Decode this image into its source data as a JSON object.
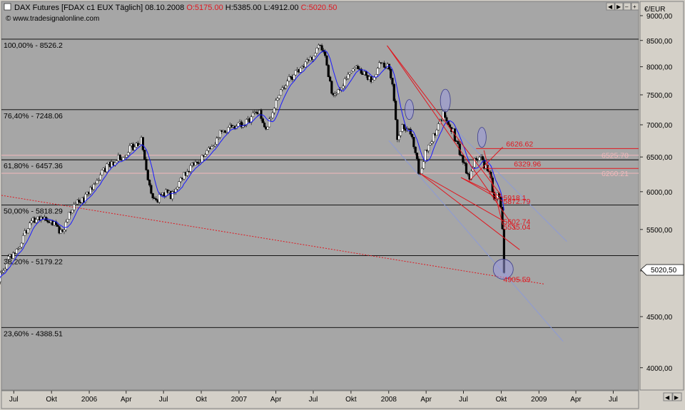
{
  "header": {
    "instrument": "DAX Futures [FDAX c1 EUX  Täglich] 08.10.2008",
    "open": "O:5175.00",
    "high": "H:5385.00",
    "low": "L:4912.00",
    "close": "C:5020.50",
    "source": "www.tradesignalonline.com",
    "currency": "€/EUR",
    "last_price": "5020,50"
  },
  "colors": {
    "plot_bg": "#a6a6a6",
    "panel_bg": "#d4d0c8",
    "up_candle": "#ffffff",
    "down_candle": "#000000",
    "moving_average": "#1a1aff",
    "trend_red": "#e0171f",
    "channel_blue": "#8c9ad6",
    "fib_line": "#000000",
    "pink_line": "#f2b8bb",
    "highlight_ellipse": "#9a9adf"
  },
  "chart_data": {
    "type": "candlestick",
    "title": "DAX Futures [FDAX c1 EUX  Täglich] 08.10.2008",
    "ylabel": "€/EUR",
    "y_scale": "log",
    "ylim": [
      3800,
      9300
    ],
    "xlim": [
      "2005-06-01",
      "2009-09-01"
    ],
    "grid": false,
    "y_ticks": [
      "4000,00",
      "4500,00",
      "5000,00",
      "5500,00",
      "6000,00",
      "6500,00",
      "7000,00",
      "7500,00",
      "8000,00",
      "8500,00",
      "9000,00"
    ],
    "y_tick_values": [
      4000,
      4500,
      5000,
      5500,
      6000,
      6500,
      7000,
      7500,
      8000,
      8500,
      9000
    ],
    "x_ticks": [
      {
        "label": "Jul",
        "date": "2005-07-01"
      },
      {
        "label": "Okt",
        "date": "2005-10-01"
      },
      {
        "label": "2006",
        "date": "2006-01-01"
      },
      {
        "label": "Apr",
        "date": "2006-04-01"
      },
      {
        "label": "Jul",
        "date": "2006-07-01"
      },
      {
        "label": "Okt",
        "date": "2006-10-01"
      },
      {
        "label": "2007",
        "date": "2007-01-01"
      },
      {
        "label": "Apr",
        "date": "2007-04-01"
      },
      {
        "label": "Jul",
        "date": "2007-07-01"
      },
      {
        "label": "Okt",
        "date": "2007-10-01"
      },
      {
        "label": "2008",
        "date": "2008-01-01"
      },
      {
        "label": "Apr",
        "date": "2008-04-01"
      },
      {
        "label": "Jul",
        "date": "2008-07-01"
      },
      {
        "label": "Okt",
        "date": "2008-10-01"
      },
      {
        "label": "2009",
        "date": "2009-01-01"
      },
      {
        "label": "Apr",
        "date": "2009-04-01"
      },
      {
        "label": "Jul",
        "date": "2009-07-01"
      }
    ],
    "price_path": [
      [
        "2005-05-25",
        4900
      ],
      [
        "2005-06-20",
        5150
      ],
      [
        "2005-07-15",
        5300
      ],
      [
        "2005-08-10",
        5600
      ],
      [
        "2005-09-05",
        5650
      ],
      [
        "2005-10-10",
        5550
      ],
      [
        "2005-10-28",
        5460
      ],
      [
        "2005-11-25",
        5850
      ],
      [
        "2005-12-20",
        5900
      ],
      [
        "2006-01-25",
        6200
      ],
      [
        "2006-02-20",
        6400
      ],
      [
        "2006-03-20",
        6500
      ],
      [
        "2006-04-15",
        6650
      ],
      [
        "2006-05-08",
        6750
      ],
      [
        "2006-05-25",
        6100
      ],
      [
        "2006-06-14",
        5850
      ],
      [
        "2006-06-30",
        6000
      ],
      [
        "2006-07-20",
        5950
      ],
      [
        "2006-08-20",
        6250
      ],
      [
        "2006-09-15",
        6400
      ],
      [
        "2006-10-15",
        6550
      ],
      [
        "2006-11-15",
        6850
      ],
      [
        "2006-12-15",
        6950
      ],
      [
        "2007-01-20",
        7050
      ],
      [
        "2007-02-20",
        7250
      ],
      [
        "2007-03-05",
        6900
      ],
      [
        "2007-03-25",
        7250
      ],
      [
        "2007-04-20",
        7650
      ],
      [
        "2007-05-20",
        7900
      ],
      [
        "2007-06-20",
        8100
      ],
      [
        "2007-07-15",
        8420
      ],
      [
        "2007-07-28",
        8300
      ],
      [
        "2007-08-16",
        7450
      ],
      [
        "2007-09-05",
        7650
      ],
      [
        "2007-10-01",
        7900
      ],
      [
        "2007-10-20",
        8000
      ],
      [
        "2007-11-10",
        7800
      ],
      [
        "2007-11-25",
        7700
      ],
      [
        "2007-12-10",
        8050
      ],
      [
        "2007-12-31",
        8000
      ],
      [
        "2008-01-10",
        7700
      ],
      [
        "2008-01-22",
        6800
      ],
      [
        "2008-02-05",
        7000
      ],
      [
        "2008-02-25",
        6900
      ],
      [
        "2008-03-17",
        6200
      ],
      [
        "2008-04-05",
        6700
      ],
      [
        "2008-04-25",
        6850
      ],
      [
        "2008-05-15",
        7200
      ],
      [
        "2008-06-05",
        6900
      ],
      [
        "2008-06-25",
        6500
      ],
      [
        "2008-07-15",
        6200
      ],
      [
        "2008-07-30",
        6500
      ],
      [
        "2008-08-15",
        6450
      ],
      [
        "2008-09-02",
        6250
      ],
      [
        "2008-09-15",
        5900
      ],
      [
        "2008-09-25",
        5950
      ],
      [
        "2008-10-01",
        5750
      ],
      [
        "2008-10-06",
        5400
      ],
      [
        "2008-10-08",
        5020
      ]
    ],
    "series": [
      {
        "name": "DAX Futures",
        "type": "candles"
      },
      {
        "type": "moving_average"
      }
    ],
    "fib_levels": [
      {
        "label": "100,00% - 8526.2",
        "value": 8526.2
      },
      {
        "label": "76,40% - 7248.06",
        "value": 7248.06
      },
      {
        "label": "61,80% - 6457.36",
        "value": 6457.36
      },
      {
        "label": "50,00% - 5818.29",
        "value": 5818.29
      },
      {
        "label": "38,20% - 5179.22",
        "value": 5179.22
      },
      {
        "label": "23,60% - 4388.51",
        "value": 4388.51
      }
    ],
    "pink_levels": [
      {
        "label": "6525.70",
        "value": 6525.7
      },
      {
        "label": "6260.21",
        "value": 6260.21
      }
    ],
    "red_levels": [
      {
        "label": "6626.62",
        "value": 6626.62,
        "from": "2008-08-01",
        "to": "2009-09-01"
      },
      {
        "label": "6329.96",
        "value": 6329.96,
        "from": "2008-08-20",
        "to": "2009-09-01"
      }
    ],
    "annotations": [
      {
        "text": "5918.1",
        "date": "2008-10-01",
        "value": 5918.1
      },
      {
        "text": "5872.79",
        "date": "2008-10-01",
        "value": 5872.79
      },
      {
        "text": "5602.74",
        "date": "2008-10-01",
        "value": 5602.74
      },
      {
        "text": "5535.04",
        "date": "2008-10-01",
        "value": 5535.04
      },
      {
        "text": "4905.59",
        "date": "2008-10-01",
        "value": 4905.59
      }
    ],
    "trendlines_red": [
      [
        [
          "2007-12-28",
          8400
        ],
        [
          "2008-10-01",
          5950
        ]
      ],
      [
        [
          "2007-12-28",
          8400
        ],
        [
          "2008-11-05",
          5500
        ]
      ],
      [
        [
          "2008-03-17",
          6260
        ],
        [
          "2008-10-10",
          5600
        ]
      ],
      [
        [
          "2008-03-17",
          6260
        ],
        [
          "2008-11-15",
          5250
        ]
      ],
      [
        [
          "2008-06-25",
          6200
        ],
        [
          "2008-10-05",
          5920
        ]
      ],
      [
        [
          "2008-06-25",
          6200
        ],
        [
          "2008-10-05",
          5870
        ]
      ],
      [
        [
          "2008-07-15",
          6150
        ],
        [
          "2008-10-05",
          6650
        ]
      ],
      [
        [
          "2008-08-20",
          6600
        ],
        [
          "2008-10-05",
          5560
        ]
      ]
    ],
    "trendlines_red_dotted": [
      [
        [
          "2005-06-01",
          5950
        ],
        [
          "2009-01-15",
          4850
        ]
      ]
    ],
    "trendlines_blue": [
      [
        [
          "2008-01-01",
          6750
        ],
        [
          "2009-03-01",
          4250
        ]
      ],
      [
        [
          "2008-06-15",
          6900
        ],
        [
          "2009-03-10",
          5350
        ]
      ]
    ],
    "ellipses": [
      {
        "date": "2008-02-20",
        "value": 7250,
        "rx": 6,
        "ry": 14
      },
      {
        "date": "2008-05-18",
        "value": 7400,
        "rx": 7,
        "ry": 16
      },
      {
        "date": "2008-08-15",
        "value": 6800,
        "rx": 6,
        "ry": 14
      },
      {
        "date": "2008-10-06",
        "value": 5020,
        "rx": 14,
        "ry": 14
      }
    ]
  }
}
